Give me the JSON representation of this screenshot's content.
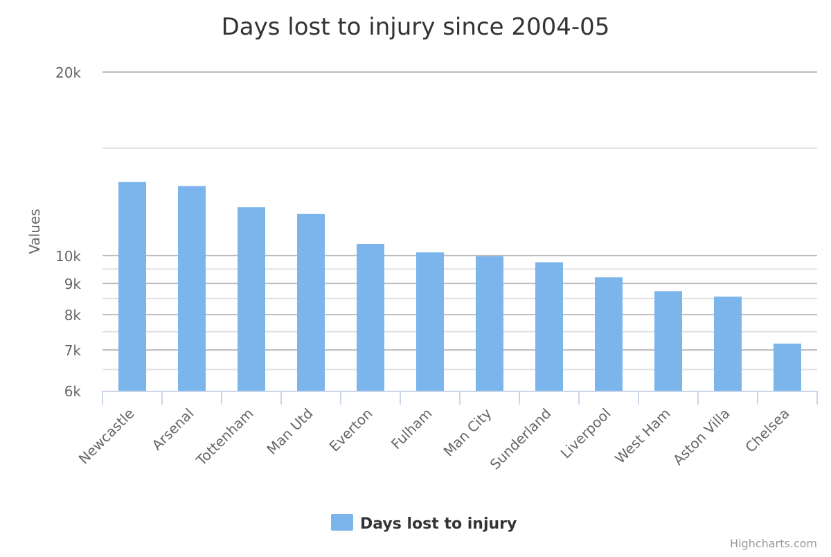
{
  "chart_data": {
    "type": "bar",
    "title": "Days lost to injury since 2004-05",
    "xlabel": "",
    "ylabel": "Values",
    "yscale": "log",
    "ylim": [
      6000,
      20000
    ],
    "ytick_values": [
      6000,
      7000,
      8000,
      9000,
      10000,
      20000
    ],
    "ytick_labels": [
      "6k",
      "7k",
      "8k",
      "9k",
      "10k",
      "20k"
    ],
    "minor_grid_values": [
      6500,
      7500,
      8500,
      9500,
      15000
    ],
    "categories": [
      "Newcastle",
      "Arsenal",
      "Tottenham",
      "Man Utd",
      "Everton",
      "Fulham",
      "Man City",
      "Sunderland",
      "Liverpool",
      "West Ham",
      "Aston Villa",
      "Chelsea"
    ],
    "series": [
      {
        "name": "Days lost to injury",
        "color": "#7cb5ec",
        "values": [
          13200,
          13000,
          12000,
          11700,
          10450,
          10120,
          9970,
          9750,
          9210,
          8740,
          8560,
          7170
        ]
      }
    ],
    "legend": "bottom-center",
    "grid": true,
    "credits": "Highcharts.com"
  }
}
